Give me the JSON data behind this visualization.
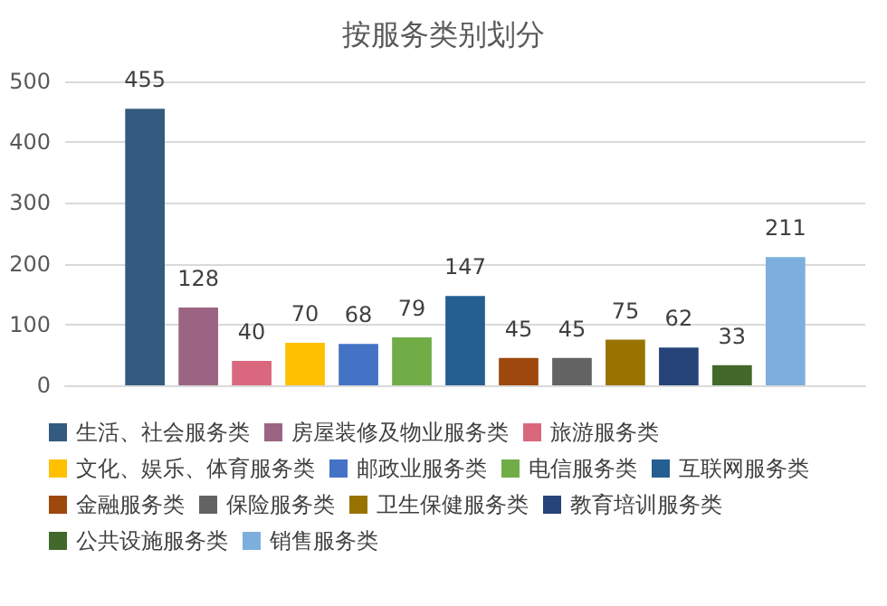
{
  "chart_data": {
    "type": "bar",
    "title": "按服务类别划分",
    "categories": [
      null
    ],
    "series": [
      {
        "name": "生活、社会服务类",
        "color": "#335b7f",
        "values": [
          455
        ]
      },
      {
        "name": "房屋装修及物业服务类",
        "color": "#9c6483",
        "values": [
          128
        ]
      },
      {
        "name": "旅游服务类",
        "color": "#d9687e",
        "values": [
          40
        ]
      },
      {
        "name": "文化、娱乐、体育服务类",
        "color": "#ffc000",
        "values": [
          70
        ]
      },
      {
        "name": "邮政业服务类",
        "color": "#4472c4",
        "values": [
          68
        ]
      },
      {
        "name": "电信服务类",
        "color": "#70ad47",
        "values": [
          79
        ]
      },
      {
        "name": "互联网服务类",
        "color": "#255e91",
        "values": [
          147
        ]
      },
      {
        "name": "金融服务类",
        "color": "#9e480e",
        "values": [
          45
        ]
      },
      {
        "name": "保险服务类",
        "color": "#636363",
        "values": [
          45
        ]
      },
      {
        "name": "卫生保健服务类",
        "color": "#997300",
        "values": [
          75
        ]
      },
      {
        "name": "教育培训服务类",
        "color": "#264478",
        "values": [
          62
        ]
      },
      {
        "name": "公共设施服务类",
        "color": "#43682b",
        "values": [
          33
        ]
      },
      {
        "name": "销售服务类",
        "color": "#7cafdd",
        "values": [
          211
        ]
      }
    ],
    "ylim": [
      0,
      500
    ],
    "yticks": [
      0,
      100,
      200,
      300,
      400,
      500
    ],
    "grid": "y",
    "data_labels": true,
    "legend": "bottom"
  }
}
